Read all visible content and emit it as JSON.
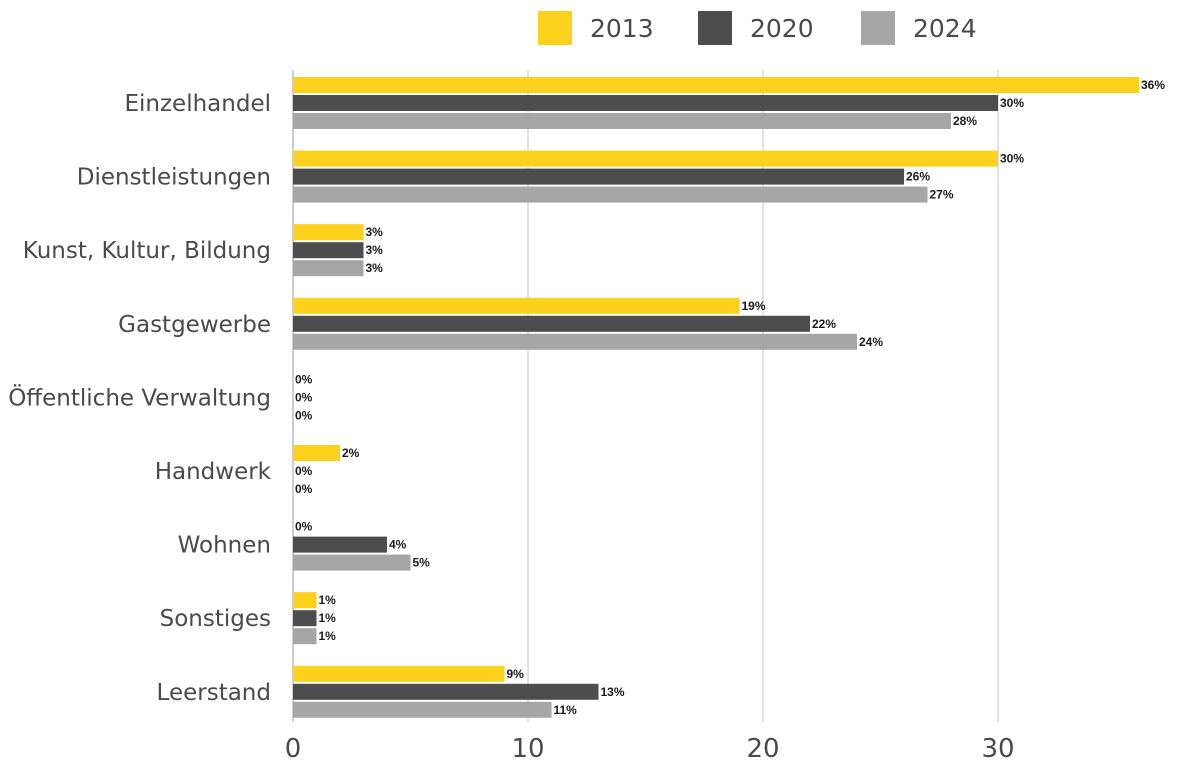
{
  "chart_data": {
    "type": "bar",
    "orientation": "horizontal",
    "categories": [
      "Einzelhandel",
      "Dienstleistungen",
      "Kunst, Kultur, Bildung",
      "Gastgewerbe",
      "Öffentliche Verwaltung",
      "Handwerk",
      "Wohnen",
      "Sonstiges",
      "Leerstand"
    ],
    "series": [
      {
        "name": "2013",
        "color": "#fcd21c",
        "values": [
          36,
          30,
          3,
          19,
          0,
          2,
          0,
          1,
          9
        ],
        "labels": [
          "36%",
          "30%",
          "3%",
          "19%",
          "0%",
          "2%",
          "0%",
          "1%",
          "9%"
        ]
      },
      {
        "name": "2020",
        "color": "#4d4d4d",
        "values": [
          30,
          26,
          3,
          22,
          0,
          0,
          4,
          1,
          13
        ],
        "labels": [
          "30%",
          "26%",
          "3%",
          "22%",
          "0%",
          "0%",
          "4%",
          "1%",
          "13%"
        ]
      },
      {
        "name": "2024",
        "color": "#a6a6a6",
        "values": [
          28,
          27,
          3,
          24,
          0,
          0,
          5,
          1,
          11
        ],
        "labels": [
          "28%",
          "27%",
          "3%",
          "24%",
          "0%",
          "0%",
          "5%",
          "1%",
          "11%"
        ]
      }
    ],
    "xlim": [
      0,
      37
    ],
    "xticks": [
      0,
      10,
      20,
      30
    ],
    "xtick_labels": [
      "0",
      "10",
      "20",
      "30"
    ],
    "grid": "vertical",
    "legend": "top"
  }
}
